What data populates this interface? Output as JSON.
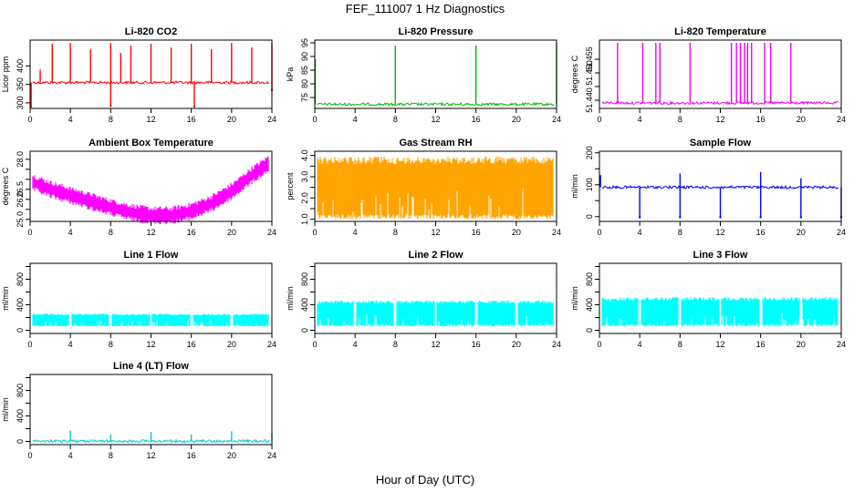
{
  "figure": {
    "title": "FEF_111007  1 Hz Diagnostics",
    "xlabel": "Hour of Day (UTC)"
  },
  "chart_data": [
    {
      "type": "line",
      "title": "Li-820 CO2",
      "ylabel": "Licor ppm",
      "color": "#ff0000",
      "xlim": [
        0,
        24
      ],
      "ylim": [
        285,
        470
      ],
      "xticks": [
        0,
        4,
        8,
        12,
        16,
        20,
        24
      ],
      "yticks": [
        300,
        350,
        400
      ],
      "baseline": 355,
      "spikes": [
        {
          "x": 1.0,
          "y": 390
        },
        {
          "x": 2.2,
          "y": 460
        },
        {
          "x": 4.0,
          "y": 462
        },
        {
          "x": 6.0,
          "y": 445
        },
        {
          "x": 8.0,
          "y": 462
        },
        {
          "x": 9.0,
          "y": 435
        },
        {
          "x": 10.0,
          "y": 455
        },
        {
          "x": 12.0,
          "y": 460
        },
        {
          "x": 14.0,
          "y": 450
        },
        {
          "x": 16.0,
          "y": 460
        },
        {
          "x": 18.0,
          "y": 445
        },
        {
          "x": 20.0,
          "y": 462
        },
        {
          "x": 22.0,
          "y": 450
        },
        {
          "x": 24.0,
          "y": 462
        }
      ],
      "dips": [
        {
          "x": 0.1,
          "y": 290
        },
        {
          "x": 8.0,
          "y": 292
        },
        {
          "x": 16.3,
          "y": 290
        },
        {
          "x": 24.0,
          "y": 335
        }
      ]
    },
    {
      "type": "line",
      "title": "Li-820 Pressure",
      "ylabel": "kPa",
      "color": "#00bb00",
      "xlim": [
        0,
        24
      ],
      "ylim": [
        71,
        96
      ],
      "xticks": [
        0,
        4,
        8,
        12,
        16,
        20,
        24
      ],
      "yticks": [
        75,
        80,
        85,
        90,
        95
      ],
      "baseline": 72.5,
      "spikes": [
        {
          "x": 0.05,
          "y": 89
        },
        {
          "x": 8.0,
          "y": 94
        },
        {
          "x": 16.0,
          "y": 94
        },
        {
          "x": 24.0,
          "y": 95
        }
      ],
      "dips": []
    },
    {
      "type": "line",
      "title": "Li-820 Temperature",
      "ylabel": "degrees C",
      "color": "#ee00ee",
      "xlim": [
        0,
        24
      ],
      "ylim": [
        51.437,
        51.462
      ],
      "xticks": [
        0,
        4,
        8,
        12,
        16,
        20,
        24
      ],
      "yticks": [
        51.44,
        51.445,
        51.45,
        51.455
      ],
      "ytick_labels": [
        "51.440",
        "",
        "51.450",
        "51.455"
      ],
      "baseline": 51.439,
      "spikes": [
        {
          "x": 1.8,
          "y": 51.461
        },
        {
          "x": 4.3,
          "y": 51.461
        },
        {
          "x": 5.6,
          "y": 51.461
        },
        {
          "x": 6.0,
          "y": 51.461
        },
        {
          "x": 9.0,
          "y": 51.461
        },
        {
          "x": 13.1,
          "y": 51.461
        },
        {
          "x": 13.6,
          "y": 51.461
        },
        {
          "x": 14.0,
          "y": 51.461
        },
        {
          "x": 14.4,
          "y": 51.461
        },
        {
          "x": 14.7,
          "y": 51.461
        },
        {
          "x": 15.1,
          "y": 51.461
        },
        {
          "x": 16.4,
          "y": 51.461
        },
        {
          "x": 17.0,
          "y": 51.461
        },
        {
          "x": 19.0,
          "y": 51.461
        }
      ],
      "dips": []
    },
    {
      "type": "band",
      "title": "Ambient Box Temperature",
      "ylabel": "degrees C",
      "color": "#ff00ff",
      "xlim": [
        0,
        24
      ],
      "ylim": [
        24.9,
        28.4
      ],
      "xticks": [
        0,
        4,
        8,
        12,
        16,
        20,
        24
      ],
      "yticks": [
        25.0,
        25.5,
        26.0,
        26.5,
        27.0,
        27.5,
        28.0
      ],
      "ytick_labels": [
        "25.0",
        "",
        "26.0",
        "26.5",
        "",
        "",
        "28.0"
      ],
      "center": [
        [
          0,
          26.9
        ],
        [
          2,
          26.5
        ],
        [
          4,
          26.2
        ],
        [
          6,
          25.9
        ],
        [
          8,
          25.6
        ],
        [
          10,
          25.35
        ],
        [
          12,
          25.2
        ],
        [
          14,
          25.2
        ],
        [
          16,
          25.4
        ],
        [
          18,
          25.8
        ],
        [
          20,
          26.4
        ],
        [
          22,
          27.2
        ],
        [
          24,
          27.9
        ]
      ],
      "halfwidth": 0.35
    },
    {
      "type": "band",
      "title": "Gas Stream RH",
      "ylabel": "percent",
      "color": "#ffa500",
      "xlim": [
        0,
        24
      ],
      "ylim": [
        0.9,
        4.2
      ],
      "xticks": [
        0,
        4,
        8,
        12,
        16,
        20,
        24
      ],
      "yticks": [
        1.0,
        1.5,
        2.0,
        2.5,
        3.0,
        3.5,
        4.0
      ],
      "ytick_labels": [
        "1.0",
        "",
        "2.0",
        "",
        "3.0",
        "",
        "4.0"
      ],
      "range": [
        1.0,
        3.95
      ]
    },
    {
      "type": "line",
      "title": "Sample Flow",
      "ylabel": "ml/min",
      "color": "#0000ff",
      "xlim": [
        0,
        24
      ],
      "ylim": [
        -15,
        205
      ],
      "xticks": [
        0,
        4,
        8,
        12,
        16,
        20,
        24
      ],
      "yticks": [
        0,
        50,
        100,
        150,
        200
      ],
      "ytick_labels": [
        "0",
        "",
        "100",
        "",
        "200"
      ],
      "baseline": 92,
      "spikes": [
        {
          "x": 0.1,
          "y": 130
        },
        {
          "x": 8.0,
          "y": 135
        },
        {
          "x": 16.0,
          "y": 140
        },
        {
          "x": 20.0,
          "y": 120
        }
      ],
      "dips": [
        {
          "x": 4.0,
          "y": -2
        },
        {
          "x": 8.0,
          "y": -2
        },
        {
          "x": 12.0,
          "y": -2
        },
        {
          "x": 16.0,
          "y": -2
        },
        {
          "x": 20.0,
          "y": -2
        },
        {
          "x": 24.0,
          "y": -2
        }
      ]
    },
    {
      "type": "band",
      "title": "Line 1 Flow",
      "ylabel": "ml/min",
      "color": "#00ffff",
      "xlim": [
        0,
        24
      ],
      "ylim": [
        -50,
        1050
      ],
      "xticks": [
        0,
        4,
        8,
        12,
        16,
        20,
        24
      ],
      "yticks": [
        0,
        200,
        400,
        600,
        800,
        1000
      ],
      "ytick_labels": [
        "0",
        "",
        "400",
        "",
        "800",
        ""
      ],
      "range": [
        60,
        260
      ],
      "gaps": [
        4,
        8,
        12,
        16,
        20
      ]
    },
    {
      "type": "band",
      "title": "Line 2 Flow",
      "ylabel": "ml/min",
      "color": "#00ffff",
      "xlim": [
        0,
        24
      ],
      "ylim": [
        -50,
        1050
      ],
      "xticks": [
        0,
        4,
        8,
        12,
        16,
        20,
        24
      ],
      "yticks": [
        0,
        200,
        400,
        600,
        800,
        1000
      ],
      "ytick_labels": [
        "0",
        "",
        "400",
        "",
        "800",
        ""
      ],
      "range": [
        60,
        470
      ],
      "gaps": [
        4,
        8,
        12,
        16,
        20
      ]
    },
    {
      "type": "band",
      "title": "Line 3 Flow",
      "ylabel": "ml/min",
      "color": "#00ffff",
      "xlim": [
        0,
        24
      ],
      "ylim": [
        -50,
        1050
      ],
      "xticks": [
        0,
        4,
        8,
        12,
        16,
        20,
        24
      ],
      "yticks": [
        0,
        200,
        400,
        600,
        800,
        1000
      ],
      "ytick_labels": [
        "0",
        "",
        "400",
        "",
        "800",
        ""
      ],
      "range": [
        60,
        520
      ],
      "gaps": [
        4,
        8,
        12,
        16,
        20
      ]
    },
    {
      "type": "line",
      "title": "Line 4 (LT) Flow",
      "ylabel": "ml/min",
      "color": "#00cccc",
      "xlim": [
        0,
        24
      ],
      "ylim": [
        -50,
        1050
      ],
      "xticks": [
        0,
        4,
        8,
        12,
        16,
        20,
        24
      ],
      "yticks": [
        0,
        200,
        400,
        600,
        800,
        1000
      ],
      "ytick_labels": [
        "0",
        "",
        "400",
        "",
        "800",
        ""
      ],
      "baseline": 5,
      "spikes": [
        {
          "x": 4.0,
          "y": 170
        },
        {
          "x": 8.0,
          "y": 110
        },
        {
          "x": 12.0,
          "y": 150
        },
        {
          "x": 16.0,
          "y": 110
        },
        {
          "x": 20.0,
          "y": 160
        },
        {
          "x": 24.0,
          "y": 120
        }
      ],
      "dips": []
    }
  ]
}
